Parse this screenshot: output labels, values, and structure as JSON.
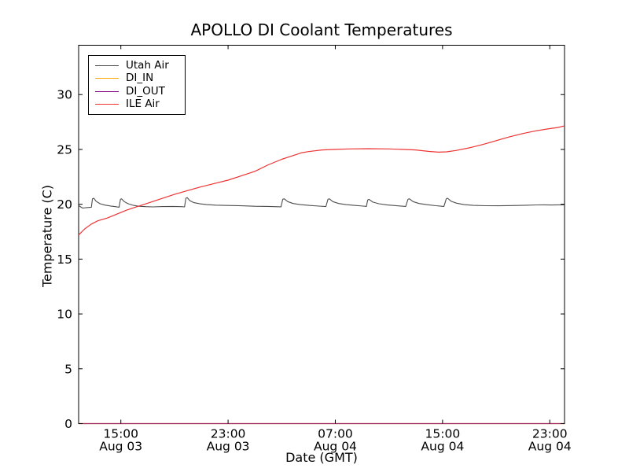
{
  "chart_data": {
    "type": "line",
    "title": "APOLLO DI Coolant Temperatures",
    "xlabel": "Date (GMT)",
    "ylabel": "Temperature (C)",
    "grid": false,
    "legend_position": "upper left",
    "x_unit": "hours since Aug 03 00:00 GMT",
    "xlim": [
      11.85,
      48.1
    ],
    "ylim": [
      0,
      34.5
    ],
    "yticks": [
      0,
      5,
      10,
      15,
      20,
      25,
      30
    ],
    "xticks": [
      {
        "t": 15,
        "time": "15:00",
        "date": "Aug 03"
      },
      {
        "t": 23,
        "time": "23:00",
        "date": "Aug 03"
      },
      {
        "t": 31,
        "time": "07:00",
        "date": "Aug 04"
      },
      {
        "t": 39,
        "time": "15:00",
        "date": "Aug 04"
      },
      {
        "t": 47,
        "time": "23:00",
        "date": "Aug 04"
      }
    ],
    "series": [
      {
        "name": "Utah Air",
        "color": "#4d4d4d",
        "points": [
          [
            11.85,
            19.9
          ],
          [
            12.0,
            19.76
          ],
          [
            12.15,
            19.65
          ],
          [
            12.5,
            19.7
          ],
          [
            12.8,
            19.73
          ],
          [
            12.88,
            20.5
          ],
          [
            12.98,
            20.55
          ],
          [
            13.15,
            20.28
          ],
          [
            13.45,
            20.05
          ],
          [
            13.85,
            19.92
          ],
          [
            14.25,
            19.84
          ],
          [
            14.6,
            19.78
          ],
          [
            14.87,
            19.73
          ],
          [
            14.97,
            20.45
          ],
          [
            15.05,
            20.5
          ],
          [
            15.25,
            20.24
          ],
          [
            15.55,
            20.05
          ],
          [
            15.95,
            19.9
          ],
          [
            16.35,
            19.82
          ],
          [
            16.85,
            19.78
          ],
          [
            17.4,
            19.76
          ],
          [
            18.1,
            19.79
          ],
          [
            18.9,
            19.8
          ],
          [
            19.5,
            19.78
          ],
          [
            19.75,
            19.76
          ],
          [
            19.85,
            20.55
          ],
          [
            19.95,
            20.6
          ],
          [
            20.15,
            20.33
          ],
          [
            20.45,
            20.15
          ],
          [
            20.9,
            20.04
          ],
          [
            21.4,
            19.97
          ],
          [
            22.1,
            19.92
          ],
          [
            23.0,
            19.89
          ],
          [
            24.0,
            19.86
          ],
          [
            25.0,
            19.82
          ],
          [
            26.0,
            19.8
          ],
          [
            26.95,
            19.77
          ],
          [
            27.08,
            20.45
          ],
          [
            27.18,
            20.5
          ],
          [
            27.45,
            20.24
          ],
          [
            27.85,
            20.07
          ],
          [
            28.4,
            19.97
          ],
          [
            29.1,
            19.89
          ],
          [
            29.8,
            19.83
          ],
          [
            30.3,
            19.79
          ],
          [
            30.45,
            20.45
          ],
          [
            30.55,
            20.5
          ],
          [
            30.82,
            20.24
          ],
          [
            31.25,
            20.07
          ],
          [
            31.8,
            19.97
          ],
          [
            32.5,
            19.89
          ],
          [
            33.1,
            19.83
          ],
          [
            33.32,
            19.8
          ],
          [
            33.42,
            20.4
          ],
          [
            33.52,
            20.45
          ],
          [
            33.8,
            20.2
          ],
          [
            34.25,
            20.05
          ],
          [
            34.85,
            19.95
          ],
          [
            35.6,
            19.86
          ],
          [
            36.25,
            19.8
          ],
          [
            36.42,
            20.45
          ],
          [
            36.52,
            20.5
          ],
          [
            36.8,
            20.24
          ],
          [
            37.25,
            20.07
          ],
          [
            37.85,
            19.96
          ],
          [
            38.5,
            19.87
          ],
          [
            39.1,
            19.8
          ],
          [
            39.28,
            20.5
          ],
          [
            39.38,
            20.55
          ],
          [
            39.65,
            20.27
          ],
          [
            40.05,
            20.1
          ],
          [
            40.6,
            19.97
          ],
          [
            41.3,
            19.9
          ],
          [
            42.2,
            19.87
          ],
          [
            43.2,
            19.86
          ],
          [
            44.2,
            19.88
          ],
          [
            45.2,
            19.91
          ],
          [
            46.0,
            19.94
          ],
          [
            46.6,
            19.95
          ],
          [
            47.1,
            19.93
          ],
          [
            47.6,
            19.95
          ],
          [
            48.1,
            19.94
          ]
        ]
      },
      {
        "name": "DI_IN",
        "color": "#ffa500",
        "points": [
          [
            11.85,
            0
          ],
          [
            48.1,
            0
          ]
        ]
      },
      {
        "name": "DI_OUT",
        "color": "#800080",
        "points": [
          [
            11.85,
            0
          ],
          [
            48.1,
            0
          ]
        ]
      },
      {
        "name": "ILE Air",
        "color": "#ee3333",
        "points": [
          [
            11.85,
            17.2
          ],
          [
            12.3,
            17.75
          ],
          [
            12.8,
            18.2
          ],
          [
            13.3,
            18.5
          ],
          [
            14.0,
            18.75
          ],
          [
            14.7,
            19.1
          ],
          [
            15.4,
            19.45
          ],
          [
            16.0,
            19.7
          ],
          [
            17.0,
            20.1
          ],
          [
            18.0,
            20.5
          ],
          [
            19.0,
            20.9
          ],
          [
            20.0,
            21.25
          ],
          [
            21.0,
            21.6
          ],
          [
            22.0,
            21.9
          ],
          [
            23.0,
            22.2
          ],
          [
            24.0,
            22.6
          ],
          [
            25.0,
            23.0
          ],
          [
            26.0,
            23.6
          ],
          [
            27.0,
            24.1
          ],
          [
            27.5,
            24.3
          ],
          [
            28.0,
            24.5
          ],
          [
            28.5,
            24.7
          ],
          [
            29.0,
            24.8
          ],
          [
            30.0,
            24.95
          ],
          [
            31.0,
            25.0
          ],
          [
            32.0,
            25.05
          ],
          [
            33.5,
            25.07
          ],
          [
            35.0,
            25.05
          ],
          [
            36.0,
            25.0
          ],
          [
            37.0,
            24.95
          ],
          [
            38.0,
            24.82
          ],
          [
            38.7,
            24.75
          ],
          [
            39.3,
            24.78
          ],
          [
            40.0,
            24.9
          ],
          [
            41.0,
            25.15
          ],
          [
            42.0,
            25.45
          ],
          [
            43.0,
            25.8
          ],
          [
            44.0,
            26.15
          ],
          [
            45.0,
            26.45
          ],
          [
            46.0,
            26.7
          ],
          [
            47.0,
            26.9
          ],
          [
            47.6,
            27.0
          ],
          [
            48.1,
            27.15
          ]
        ]
      }
    ]
  }
}
